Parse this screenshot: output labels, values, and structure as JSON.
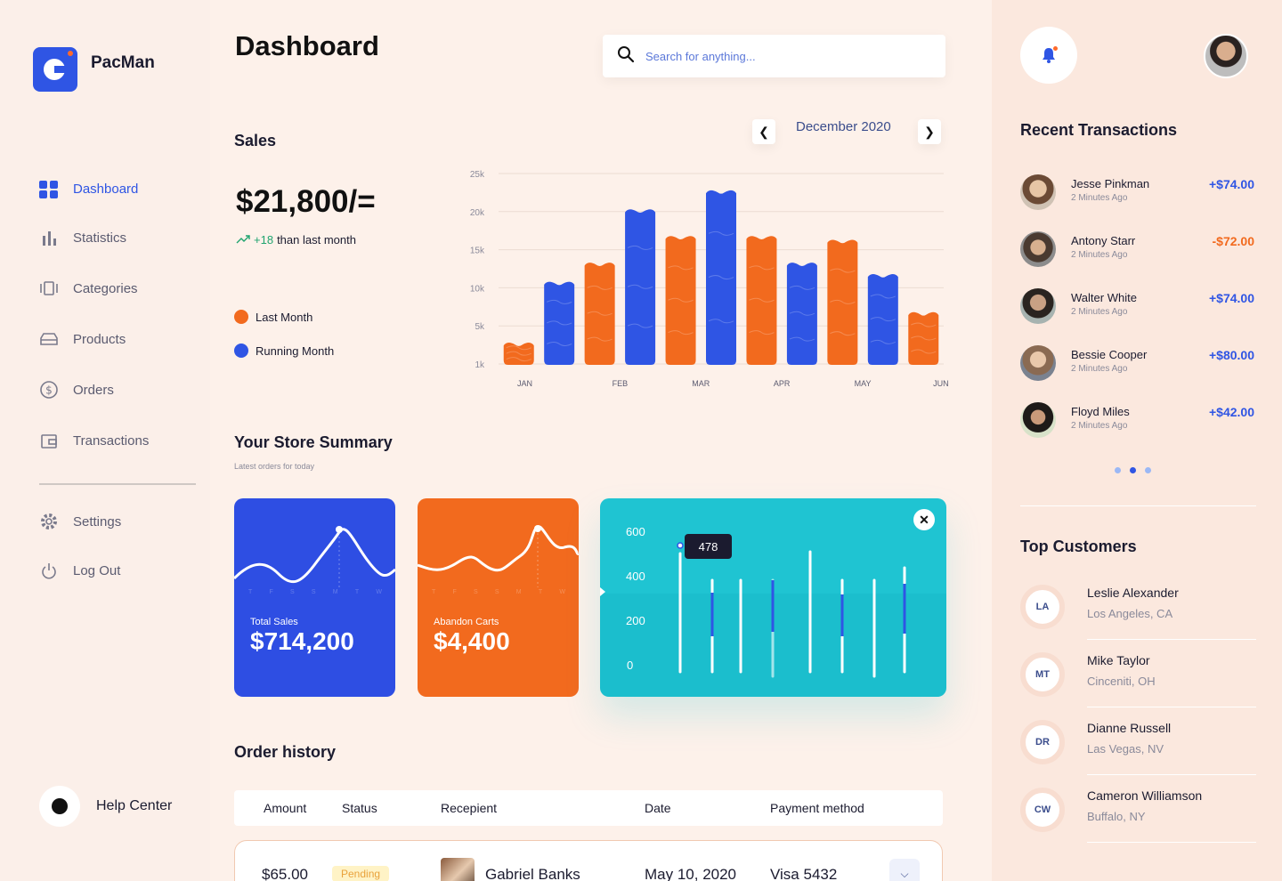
{
  "brand": {
    "name": "PacMan",
    "accent": "#2f55e4",
    "secondary": "#f26a1e",
    "cyan": "#1fc4d2"
  },
  "sidebar": {
    "items": [
      {
        "label": "Dashboard",
        "icon": "grid-icon",
        "active": true
      },
      {
        "label": "Statistics",
        "icon": "bar-chart-icon"
      },
      {
        "label": "Categories",
        "icon": "categories-icon"
      },
      {
        "label": "Products",
        "icon": "products-icon"
      },
      {
        "label": "Orders",
        "icon": "dollar-icon"
      },
      {
        "label": "Transactions",
        "icon": "wallet-icon"
      }
    ],
    "bottom": [
      {
        "label": "Settings",
        "icon": "gear-icon"
      },
      {
        "label": "Log Out",
        "icon": "power-icon"
      }
    ],
    "help": "Help Center"
  },
  "header": {
    "title": "Dashboard",
    "search_placeholder": "Search for anything..."
  },
  "sales": {
    "title": "Sales",
    "month": "December 2020",
    "amount": "$21,800/=",
    "trend_value": "+18",
    "trend_text": "than last month",
    "legend_last": "Last Month",
    "legend_running": "Running Month"
  },
  "chart_data": {
    "type": "bar",
    "y_ticks": [
      "25k",
      "20k",
      "15k",
      "10k",
      "5k",
      "1k"
    ],
    "x_ticks": [
      "JAN",
      "FEB",
      "MAR",
      "APR",
      "MAY",
      "JUN"
    ],
    "ylim": [
      0,
      25
    ],
    "series": [
      {
        "name": "Last Month",
        "color": "#f26a1e",
        "values": [
          3,
          13.5,
          17,
          17,
          16.5,
          7
        ]
      },
      {
        "name": "Running Month",
        "color": "#2f55e4",
        "values": [
          11,
          20.5,
          23,
          13.5,
          12
        ]
      }
    ],
    "sequence": [
      {
        "series": 0,
        "value": 3
      },
      {
        "series": 1,
        "value": 11
      },
      {
        "series": 0,
        "value": 13.5
      },
      {
        "series": 1,
        "value": 20.5
      },
      {
        "series": 0,
        "value": 17
      },
      {
        "series": 1,
        "value": 23
      },
      {
        "series": 0,
        "value": 17
      },
      {
        "series": 1,
        "value": 13.5
      },
      {
        "series": 0,
        "value": 16.5
      },
      {
        "series": 1,
        "value": 12
      },
      {
        "series": 0,
        "value": 7
      }
    ]
  },
  "summary": {
    "title": "Your Store Summary",
    "subtitle": "Latest orders for today",
    "days": [
      "T",
      "F",
      "S",
      "S",
      "M",
      "T",
      "W"
    ],
    "total_sales_label": "Total Sales",
    "total_sales_value": "$714,200",
    "abandon_label": "Abandon Carts",
    "abandon_value": "$4,400",
    "mini_chart_y": [
      "600",
      "400",
      "200",
      "0"
    ],
    "tooltip": "478",
    "close": "✕"
  },
  "orders": {
    "title": "Order history",
    "headers": [
      "Amount",
      "Status",
      "Recepient",
      "Date",
      "Payment method"
    ],
    "rows": [
      {
        "amount": "$65.00",
        "status": "Pending",
        "recipient": "Gabriel Banks",
        "date": "May 10, 2020",
        "method": "Visa 5432"
      }
    ]
  },
  "transactions": {
    "title": "Recent Transactions",
    "items": [
      {
        "name": "Jesse Pinkman",
        "time": "2 Minutes Ago",
        "amount": "+$74.00",
        "positive": true
      },
      {
        "name": "Antony Starr",
        "time": "2 Minutes Ago",
        "amount": "-$72.00",
        "positive": false
      },
      {
        "name": "Walter White",
        "time": "2 Minutes Ago",
        "amount": "+$74.00",
        "positive": true
      },
      {
        "name": "Bessie Cooper",
        "time": "2 Minutes Ago",
        "amount": "+$80.00",
        "positive": true
      },
      {
        "name": "Floyd Miles",
        "time": "2 Minutes Ago",
        "amount": "+$42.00",
        "positive": true
      }
    ]
  },
  "customers": {
    "title": "Top Customers",
    "items": [
      {
        "initials": "LA",
        "name": "Leslie Alexander",
        "location": "Los Angeles, CA"
      },
      {
        "initials": "MT",
        "name": "Mike Taylor",
        "location": "Cinceniti, OH"
      },
      {
        "initials": "DR",
        "name": "Dianne Russell",
        "location": "Las Vegas, NV"
      },
      {
        "initials": "CW",
        "name": "Cameron Williamson",
        "location": "Buffalo, NY"
      }
    ]
  }
}
